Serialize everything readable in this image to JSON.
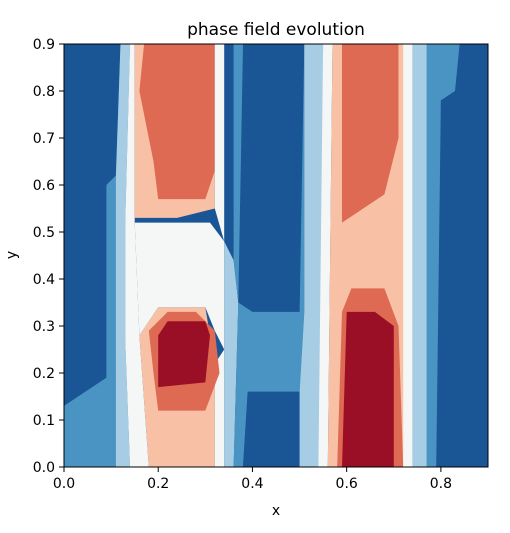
{
  "chart_data": {
    "type": "heatmap",
    "subtype": "filled-contour",
    "title": "phase field evolution",
    "xlabel": "x",
    "ylabel": "y",
    "xlim": [
      0.0,
      0.9
    ],
    "ylim": [
      0.0,
      0.9
    ],
    "xticks": [
      0.0,
      0.2,
      0.4,
      0.6,
      0.8
    ],
    "xtick_labels": [
      "0.0",
      "0.2",
      "0.4",
      "0.6",
      "0.8"
    ],
    "yticks": [
      0.0,
      0.1,
      0.2,
      0.3,
      0.4,
      0.5,
      0.6,
      0.7,
      0.8,
      0.9
    ],
    "ytick_labels": [
      "0.0",
      "0.1",
      "0.2",
      "0.3",
      "0.4",
      "0.5",
      "0.6",
      "0.7",
      "0.8",
      "0.9"
    ],
    "grid": false,
    "legend": "none",
    "colormap": "RdBu_r",
    "levels_colors": [
      "#1a5596",
      "#4a94c4",
      "#a6cde4",
      "#f5f6f6",
      "#f8c0a4",
      "#de6a53",
      "#9a0f26"
    ],
    "regions": [
      {
        "level": 0,
        "polygon": [
          [
            0,
            0.13
          ],
          [
            0.09,
            0.19
          ],
          [
            0.09,
            0.6
          ],
          [
            0.11,
            0.62
          ],
          [
            0.11,
            0.9
          ],
          [
            0,
            0.9
          ]
        ]
      },
      {
        "level": 1,
        "polygon": [
          [
            0,
            0
          ],
          [
            0.11,
            0
          ],
          [
            0.11,
            0.61
          ],
          [
            0.13,
            0.9
          ],
          [
            0.12,
            0.9
          ],
          [
            0.11,
            0.62
          ],
          [
            0.09,
            0.6
          ],
          [
            0.09,
            0.19
          ],
          [
            0,
            0.13
          ]
        ]
      },
      {
        "level": 2,
        "polygon": [
          [
            0.11,
            0
          ],
          [
            0.14,
            0
          ],
          [
            0.13,
            0.27
          ],
          [
            0.13,
            0.52
          ],
          [
            0.14,
            0.9
          ],
          [
            0.12,
            0.9
          ],
          [
            0.11,
            0.61
          ]
        ]
      },
      {
        "level": 3,
        "polygon": [
          [
            0.14,
            0
          ],
          [
            0.18,
            0
          ],
          [
            0.16,
            0.28
          ],
          [
            0.15,
            0.52
          ],
          [
            0.15,
            0.9
          ],
          [
            0.14,
            0.9
          ],
          [
            0.13,
            0.52
          ],
          [
            0.13,
            0.27
          ]
        ]
      },
      {
        "level": 4,
        "polygon": [
          [
            0.18,
            0
          ],
          [
            0.32,
            0
          ],
          [
            0.32,
            0.22
          ],
          [
            0.3,
            0.34
          ],
          [
            0.2,
            0.34
          ],
          [
            0.16,
            0.28
          ]
        ]
      },
      {
        "level": 4,
        "polygon": [
          [
            0.15,
            0.53
          ],
          [
            0.24,
            0.53
          ],
          [
            0.32,
            0.55
          ],
          [
            0.32,
            0.9
          ],
          [
            0.15,
            0.9
          ]
        ]
      },
      {
        "level": 3,
        "polygon": [
          [
            0.16,
            0.28
          ],
          [
            0.2,
            0.34
          ],
          [
            0.3,
            0.34
          ],
          [
            0.32,
            0.29
          ],
          [
            0.34,
            0.25
          ],
          [
            0.34,
            0.48
          ],
          [
            0.31,
            0.52
          ],
          [
            0.24,
            0.52
          ],
          [
            0.15,
            0.52
          ]
        ]
      },
      {
        "level": 3,
        "polygon": [
          [
            0.32,
            0
          ],
          [
            0.34,
            0
          ],
          [
            0.34,
            0.25
          ],
          [
            0.32,
            0.22
          ]
        ]
      },
      {
        "level": 5,
        "polygon": [
          [
            0.2,
            0.12
          ],
          [
            0.3,
            0.12
          ],
          [
            0.33,
            0.2
          ],
          [
            0.32,
            0.29
          ],
          [
            0.28,
            0.33
          ],
          [
            0.22,
            0.33
          ],
          [
            0.18,
            0.29
          ],
          [
            0.19,
            0.2
          ]
        ]
      },
      {
        "level": 5,
        "polygon": [
          [
            0.2,
            0.57
          ],
          [
            0.3,
            0.57
          ],
          [
            0.32,
            0.63
          ],
          [
            0.32,
            0.9
          ],
          [
            0.17,
            0.9
          ],
          [
            0.16,
            0.8
          ],
          [
            0.19,
            0.65
          ]
        ]
      },
      {
        "level": 6,
        "polygon": [
          [
            0.2,
            0.17
          ],
          [
            0.3,
            0.18
          ],
          [
            0.31,
            0.28
          ],
          [
            0.3,
            0.31
          ],
          [
            0.22,
            0.31
          ],
          [
            0.2,
            0.28
          ]
        ]
      },
      {
        "level": 2,
        "polygon": [
          [
            0.34,
            0
          ],
          [
            0.36,
            0
          ],
          [
            0.37,
            0.35
          ],
          [
            0.36,
            0.44
          ],
          [
            0.34,
            0.48
          ]
        ]
      },
      {
        "level": 3,
        "polygon": [
          [
            0.32,
            0.55
          ],
          [
            0.34,
            0.48
          ],
          [
            0.34,
            0.9
          ],
          [
            0.32,
            0.9
          ]
        ]
      },
      {
        "level": 1,
        "polygon": [
          [
            0.36,
            0
          ],
          [
            0.38,
            0
          ],
          [
            0.39,
            0.16
          ],
          [
            0.5,
            0.16
          ],
          [
            0.51,
            0.33
          ],
          [
            0.51,
            0.9
          ],
          [
            0.36,
            0.9
          ],
          [
            0.36,
            0.44
          ],
          [
            0.37,
            0.35
          ]
        ]
      },
      {
        "level": 0,
        "polygon": [
          [
            0.38,
            0
          ],
          [
            0.5,
            0
          ],
          [
            0.5,
            0.16
          ],
          [
            0.39,
            0.16
          ]
        ]
      },
      {
        "level": 0,
        "polygon": [
          [
            0.37,
            0.35
          ],
          [
            0.4,
            0.33
          ],
          [
            0.5,
            0.33
          ],
          [
            0.51,
            0.9
          ],
          [
            0.38,
            0.9
          ]
        ]
      },
      {
        "level": 2,
        "polygon": [
          [
            0.5,
            0
          ],
          [
            0.55,
            0
          ],
          [
            0.55,
            0.9
          ],
          [
            0.51,
            0.9
          ],
          [
            0.51,
            0.33
          ],
          [
            0.5,
            0.16
          ]
        ]
      },
      {
        "level": 3,
        "polygon": [
          [
            0.54,
            0
          ],
          [
            0.56,
            0
          ],
          [
            0.57,
            0.9
          ],
          [
            0.55,
            0.9
          ]
        ]
      },
      {
        "level": 4,
        "polygon": [
          [
            0.56,
            0
          ],
          [
            0.74,
            0
          ],
          [
            0.73,
            0.63
          ],
          [
            0.74,
            0.9
          ],
          [
            0.57,
            0.9
          ]
        ]
      },
      {
        "level": 5,
        "polygon": [
          [
            0.58,
            0
          ],
          [
            0.72,
            0
          ],
          [
            0.71,
            0.3
          ],
          [
            0.68,
            0.38
          ],
          [
            0.61,
            0.38
          ],
          [
            0.59,
            0.33
          ]
        ]
      },
      {
        "level": 5,
        "polygon": [
          [
            0.59,
            0.52
          ],
          [
            0.68,
            0.58
          ],
          [
            0.71,
            0.7
          ],
          [
            0.71,
            0.9
          ],
          [
            0.59,
            0.9
          ]
        ]
      },
      {
        "level": 6,
        "polygon": [
          [
            0.59,
            0
          ],
          [
            0.7,
            0
          ],
          [
            0.7,
            0.3
          ],
          [
            0.66,
            0.33
          ],
          [
            0.6,
            0.33
          ]
        ]
      },
      {
        "level": 3,
        "polygon": [
          [
            0.72,
            0
          ],
          [
            0.74,
            0
          ],
          [
            0.74,
            0.9
          ],
          [
            0.72,
            0.9
          ]
        ]
      },
      {
        "level": 2,
        "polygon": [
          [
            0.74,
            0
          ],
          [
            0.77,
            0
          ],
          [
            0.77,
            0.9
          ],
          [
            0.74,
            0.9
          ]
        ]
      },
      {
        "level": 1,
        "polygon": [
          [
            0.77,
            0
          ],
          [
            0.8,
            0
          ],
          [
            0.8,
            0.78
          ],
          [
            0.83,
            0.8
          ],
          [
            0.84,
            0.9
          ],
          [
            0.77,
            0.9
          ]
        ]
      },
      {
        "level": 0,
        "polygon": [
          [
            0.79,
            0
          ],
          [
            0.9,
            0
          ],
          [
            0.9,
            0.9
          ],
          [
            0.84,
            0.9
          ],
          [
            0.83,
            0.79
          ],
          [
            0.8,
            0.78
          ]
        ]
      }
    ]
  }
}
